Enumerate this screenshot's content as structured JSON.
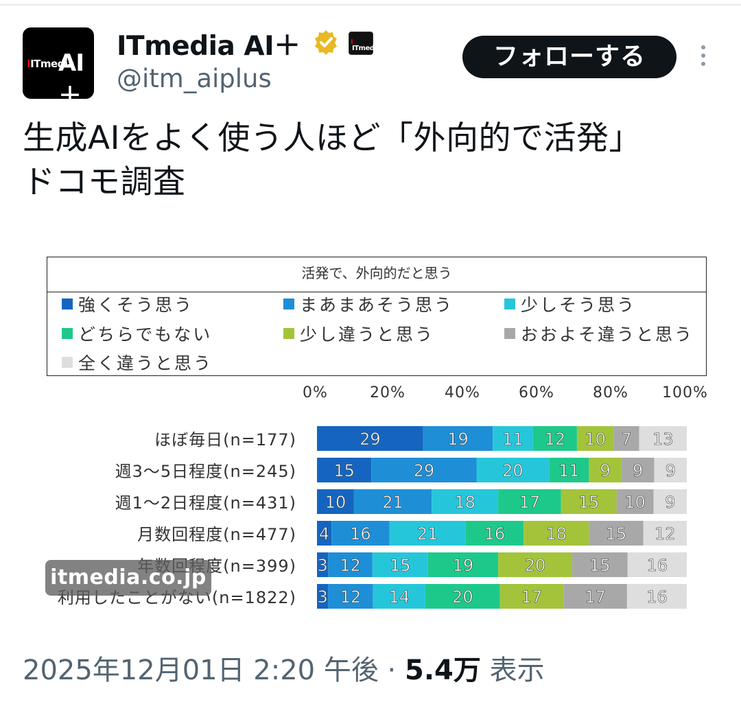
{
  "account": {
    "display_name": "ITmedia AI＋",
    "handle": "@itm_aiplus",
    "follow_label": "フォローする",
    "avatar_logo": {
      "small": "ITmedia",
      "big": "AI＋"
    },
    "affiliate_logo": "ITmedia"
  },
  "tweet": {
    "text_line1": "生成AIをよく使う人ほど「外向的で活発」",
    "text_line2": "ドコモ調査"
  },
  "chart_data": {
    "type": "bar",
    "orientation": "horizontal-stacked-100",
    "title": "活発で、外向的だと思う",
    "xticks": [
      "0%",
      "20%",
      "40%",
      "60%",
      "80%",
      "100%"
    ],
    "xlim": [
      0,
      100
    ],
    "legend_placement": "top",
    "categories": [
      "ほぼ毎日(n=177)",
      "週3～5日程度(n=245)",
      "週1～2日程度(n=431)",
      "月数回程度(n=477)",
      "年数回程度(n=399)",
      "利用したことがない(n=1822)"
    ],
    "series": [
      {
        "name": "強くそう思う",
        "color": "#1565c0",
        "values": [
          29,
          15,
          10,
          4,
          3,
          3
        ]
      },
      {
        "name": "まあまあそう思う",
        "color": "#1e8fd6",
        "values": [
          19,
          29,
          21,
          16,
          12,
          12
        ]
      },
      {
        "name": "少しそう思う",
        "color": "#26c6da",
        "values": [
          11,
          20,
          18,
          21,
          15,
          14
        ]
      },
      {
        "name": "どちらでもない",
        "color": "#1dc98a",
        "values": [
          12,
          11,
          17,
          16,
          19,
          20
        ]
      },
      {
        "name": "少し違うと思う",
        "color": "#a3c43a",
        "values": [
          10,
          9,
          15,
          18,
          20,
          17
        ]
      },
      {
        "name": "おおよそ違うと思う",
        "color": "#a8a8a8",
        "values": [
          7,
          9,
          10,
          15,
          15,
          17
        ]
      },
      {
        "name": "全く違うと思う",
        "color": "#dedede",
        "values": [
          13,
          9,
          9,
          12,
          16,
          16
        ]
      }
    ]
  },
  "watermark": "itmedia.co.jp",
  "footer": {
    "timestamp": "2025年12月01日 2:20 午後 · ",
    "views": "5.4万",
    "views_suffix": " 表示"
  }
}
